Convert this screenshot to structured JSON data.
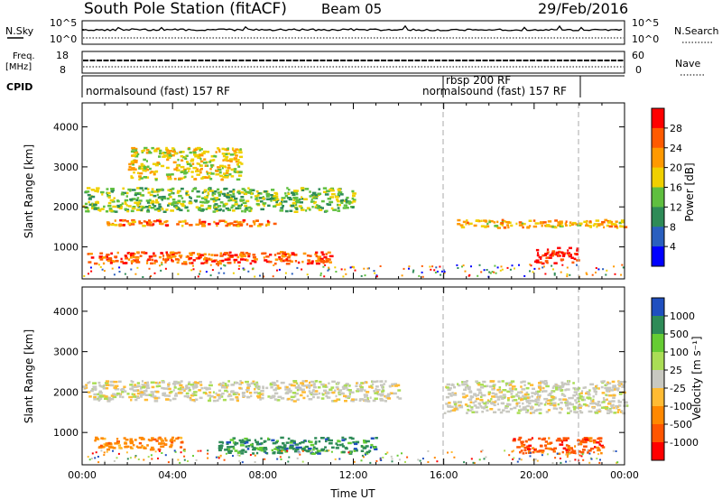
{
  "header": {
    "title": "South Pole Station (fitACF)",
    "beam": "Beam 05",
    "date": "29/Feb/2016"
  },
  "summary": {
    "nsky_label": "N.Sky",
    "nsearch_label": "N.Search",
    "noise_ticks": [
      "10^5",
      "10^0"
    ],
    "freq_label_1": "Freq.",
    "freq_label_2": "[MHz]",
    "freq_ticks": [
      "18",
      "8"
    ],
    "nave_label": "Nave",
    "nave_ticks": [
      "60",
      "0"
    ],
    "cpid_label": "CPID",
    "cpid_segments": [
      {
        "label": "normalsound (fast) 157 RF",
        "start_hour": 0,
        "end_hour": 16
      },
      {
        "label": "rbsp 200 RF",
        "start_hour": 16,
        "end_hour": 16.1
      },
      {
        "label": "normalsound (fast) 157 RF",
        "start_hour": 16.1,
        "end_hour": 21.9
      }
    ]
  },
  "chart_data": [
    {
      "type": "heatmap",
      "name": "power-panel",
      "ylabel": "Slant Range [km]",
      "xlim": [
        "00:00",
        "24:00"
      ],
      "ylim": [
        200,
        4600
      ],
      "yticks": [
        "1000",
        "2000",
        "3000",
        "4000"
      ],
      "colorbar": {
        "label": "Power [dB]",
        "ticks": [
          "4",
          "8",
          "12",
          "16",
          "20",
          "24",
          "28"
        ],
        "colors": [
          "#0000ff",
          "#2a5fbf",
          "#2e8b57",
          "#5fbf3f",
          "#f0d000",
          "#ff9900",
          "#ff5a00",
          "#ff0000"
        ]
      },
      "echo_regions_km": [
        {
          "h": [
            0.2,
            11.0
          ],
          "r": [
            600,
            900
          ],
          "level": 24
        },
        {
          "h": [
            1.0,
            8.5
          ],
          "r": [
            1550,
            1700
          ],
          "level": 22
        },
        {
          "h": [
            0,
            12.0
          ],
          "r": [
            1900,
            2500
          ],
          "level": 12
        },
        {
          "h": [
            2.0,
            7.0
          ],
          "r": [
            2700,
            3500
          ],
          "level": 16
        },
        {
          "h": [
            16.5,
            24
          ],
          "r": [
            1500,
            1700
          ],
          "level": 18
        },
        {
          "h": [
            20.0,
            22.0
          ],
          "r": [
            600,
            1000
          ],
          "level": 28
        }
      ]
    },
    {
      "type": "heatmap",
      "name": "velocity-panel",
      "ylabel": "Slant Range [km]",
      "xlabel": "Time UT",
      "xlim": [
        "00:00",
        "24:00"
      ],
      "ylim": [
        200,
        4600
      ],
      "yticks": [
        "1000",
        "2000",
        "3000",
        "4000"
      ],
      "xticks": [
        "00:00",
        "04:00",
        "08:00",
        "12:00",
        "16:00",
        "20:00",
        "00:00"
      ],
      "colorbar": {
        "label": "Velocity [m s⁻¹]",
        "ticks": [
          "1000",
          "500",
          "100",
          "25",
          "-25",
          "-100",
          "-500",
          "-1000"
        ],
        "colors": [
          "#1f4fbf",
          "#2e8b57",
          "#66cc33",
          "#aadd55",
          "#c8c8c0",
          "#ffbb33",
          "#ff8800",
          "#ff5500",
          "#ff0000"
        ]
      },
      "echo_regions_km": [
        {
          "h": [
            0.5,
            4.5
          ],
          "r": [
            600,
            900
          ],
          "velocity": -100
        },
        {
          "h": [
            6.0,
            13.0
          ],
          "r": [
            500,
            900
          ],
          "velocity": 500
        },
        {
          "h": [
            0,
            14.0
          ],
          "r": [
            1800,
            2300
          ],
          "velocity": 0
        },
        {
          "h": [
            16.0,
            24
          ],
          "r": [
            1500,
            2300
          ],
          "velocity": 0
        },
        {
          "h": [
            19.0,
            23.0
          ],
          "r": [
            500,
            900
          ],
          "velocity": -500
        }
      ]
    }
  ]
}
